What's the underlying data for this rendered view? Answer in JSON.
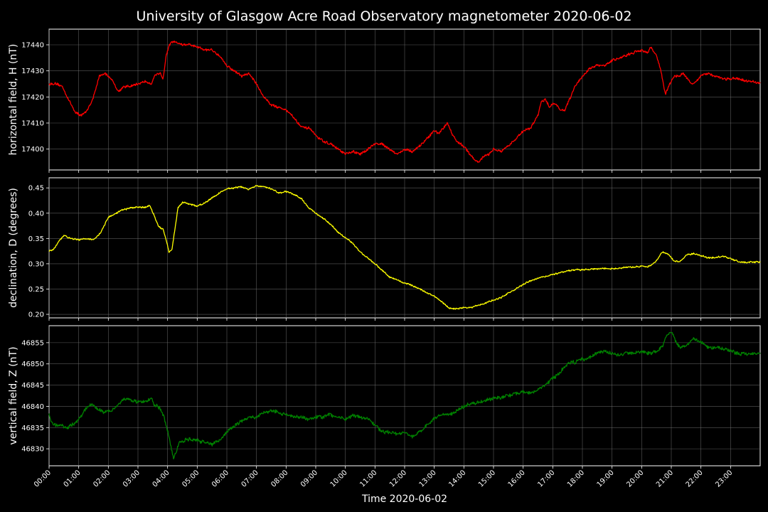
{
  "figure": {
    "title": "University of Glasgow Acre Road Observatory magnetometer 2020-06-02",
    "xlabel": "Time 2020-06-02",
    "background": "#000000"
  },
  "chart_data": [
    {
      "type": "line",
      "ylabel": "horizontal field, H (nT)",
      "color": "#ff0000",
      "ylim": [
        17392,
        17446
      ],
      "yticks": [
        17400,
        17410,
        17420,
        17430,
        17440
      ],
      "xlim": [
        0,
        24
      ],
      "xticks": [
        "00:00",
        "01:00",
        "02:00",
        "03:00",
        "04:00",
        "05:00",
        "06:00",
        "07:00",
        "08:00",
        "09:00",
        "10:00",
        "11:00",
        "12:00",
        "13:00",
        "14:00",
        "15:00",
        "16:00",
        "17:00",
        "18:00",
        "19:00",
        "20:00",
        "21:00",
        "22:00",
        "23:00"
      ],
      "grid": true,
      "noise": 0.8,
      "x": [
        0,
        0.2,
        0.45,
        0.7,
        0.9,
        1.05,
        1.25,
        1.5,
        1.7,
        1.9,
        2.1,
        2.35,
        2.5,
        2.75,
        3.0,
        3.25,
        3.45,
        3.55,
        3.75,
        3.85,
        3.95,
        4.05,
        4.15,
        4.3,
        4.5,
        4.75,
        5.0,
        5.25,
        5.5,
        5.75,
        6.0,
        6.25,
        6.5,
        6.75,
        7.0,
        7.25,
        7.5,
        7.75,
        8.0,
        8.2,
        8.4,
        8.6,
        8.8,
        9.0,
        9.25,
        9.5,
        9.75,
        10.0,
        10.25,
        10.5,
        10.75,
        11.0,
        11.25,
        11.5,
        11.75,
        12.0,
        12.25,
        12.5,
        12.75,
        13.0,
        13.15,
        13.3,
        13.45,
        13.6,
        13.75,
        14.0,
        14.15,
        14.35,
        14.5,
        14.65,
        14.85,
        15.0,
        15.25,
        15.5,
        15.75,
        16.0,
        16.25,
        16.5,
        16.6,
        16.75,
        16.9,
        17.05,
        17.25,
        17.4,
        17.6,
        17.75,
        18.0,
        18.25,
        18.5,
        18.75,
        19.0,
        19.25,
        19.5,
        19.75,
        20.0,
        20.2,
        20.3,
        20.5,
        20.65,
        20.8,
        20.95,
        21.1,
        21.25,
        21.4,
        21.55,
        21.7,
        21.85,
        22.0,
        22.25,
        22.5,
        22.75,
        23.0,
        23.25,
        23.5,
        23.75,
        24.0
      ],
      "y": [
        17425,
        17425,
        17424,
        17418,
        17414,
        17413,
        17414,
        17420,
        17428,
        17429,
        17427,
        17422,
        17424,
        17424,
        17425,
        17426,
        17425,
        17428,
        17429,
        17427,
        17436,
        17440,
        17441,
        17441,
        17440,
        17440,
        17439,
        17438,
        17438,
        17436,
        17432,
        17430,
        17428,
        17429,
        17425,
        17420,
        17417,
        17416,
        17415,
        17413,
        17410,
        17408,
        17408,
        17405,
        17403,
        17402,
        17400,
        17398,
        17399,
        17398,
        17400,
        17402,
        17402,
        17400,
        17398,
        17400,
        17399,
        17401,
        17404,
        17407,
        17406,
        17408,
        17410,
        17406,
        17403,
        17401,
        17399,
        17396,
        17395,
        17397,
        17398,
        17400,
        17399,
        17401,
        17404,
        17407,
        17408,
        17413,
        17418,
        17419,
        17416,
        17418,
        17415,
        17415,
        17420,
        17424,
        17428,
        17431,
        17432,
        17432,
        17434,
        17435,
        17436,
        17437,
        17438,
        17437,
        17439,
        17436,
        17430,
        17421,
        17425,
        17428,
        17428,
        17429,
        17427,
        17425,
        17426,
        17428,
        17429,
        17428,
        17427,
        17427,
        17427,
        17426,
        17426,
        17425
      ]
    },
    {
      "type": "line",
      "ylabel": "declination, D (degrees)",
      "color": "#ffff00",
      "ylim": [
        0.193,
        0.47
      ],
      "yticks": [
        0.2,
        0.25,
        0.3,
        0.35,
        0.4,
        0.45
      ],
      "tickfmt": 2,
      "xlim": [
        0,
        24
      ],
      "xticks": [
        "00:00",
        "01:00",
        "02:00",
        "03:00",
        "04:00",
        "05:00",
        "06:00",
        "07:00",
        "08:00",
        "09:00",
        "10:00",
        "11:00",
        "12:00",
        "13:00",
        "14:00",
        "15:00",
        "16:00",
        "17:00",
        "18:00",
        "19:00",
        "20:00",
        "21:00",
        "22:00",
        "23:00"
      ],
      "grid": true,
      "noise": 0.0025,
      "x": [
        0,
        0.15,
        0.35,
        0.5,
        0.75,
        1.0,
        1.25,
        1.5,
        1.75,
        2.0,
        2.25,
        2.5,
        2.75,
        3.0,
        3.25,
        3.4,
        3.55,
        3.7,
        3.85,
        4.0,
        4.05,
        4.15,
        4.25,
        4.35,
        4.5,
        4.75,
        5.0,
        5.25,
        5.5,
        5.75,
        6.0,
        6.25,
        6.5,
        6.75,
        7.0,
        7.25,
        7.5,
        7.75,
        8.0,
        8.25,
        8.5,
        8.75,
        9.0,
        9.25,
        9.5,
        9.75,
        10.0,
        10.25,
        10.5,
        10.75,
        11.0,
        11.25,
        11.5,
        11.75,
        12.0,
        12.25,
        12.5,
        12.75,
        13.0,
        13.25,
        13.5,
        13.75,
        14.0,
        14.25,
        14.5,
        14.75,
        15.0,
        15.25,
        15.5,
        15.75,
        16.0,
        16.25,
        16.5,
        16.75,
        17.0,
        17.25,
        17.5,
        17.75,
        18.0,
        18.25,
        18.5,
        18.75,
        19.0,
        19.25,
        19.5,
        19.75,
        20.0,
        20.2,
        20.45,
        20.7,
        20.9,
        21.1,
        21.3,
        21.5,
        21.75,
        22.0,
        22.25,
        22.5,
        22.75,
        23.0,
        23.25,
        23.5,
        23.75,
        24.0
      ],
      "y": [
        0.325,
        0.328,
        0.345,
        0.356,
        0.35,
        0.348,
        0.35,
        0.347,
        0.362,
        0.392,
        0.399,
        0.407,
        0.41,
        0.412,
        0.412,
        0.415,
        0.395,
        0.373,
        0.368,
        0.335,
        0.322,
        0.33,
        0.37,
        0.41,
        0.421,
        0.418,
        0.414,
        0.42,
        0.43,
        0.44,
        0.448,
        0.45,
        0.452,
        0.447,
        0.454,
        0.452,
        0.448,
        0.44,
        0.443,
        0.437,
        0.43,
        0.412,
        0.4,
        0.39,
        0.378,
        0.363,
        0.352,
        0.34,
        0.323,
        0.312,
        0.3,
        0.287,
        0.273,
        0.268,
        0.262,
        0.257,
        0.25,
        0.243,
        0.236,
        0.225,
        0.212,
        0.211,
        0.213,
        0.214,
        0.218,
        0.223,
        0.228,
        0.233,
        0.242,
        0.25,
        0.259,
        0.266,
        0.272,
        0.275,
        0.279,
        0.282,
        0.286,
        0.288,
        0.288,
        0.289,
        0.29,
        0.291,
        0.29,
        0.291,
        0.293,
        0.294,
        0.295,
        0.294,
        0.302,
        0.324,
        0.318,
        0.305,
        0.304,
        0.317,
        0.32,
        0.316,
        0.312,
        0.312,
        0.315,
        0.31,
        0.305,
        0.302,
        0.303,
        0.304
      ]
    },
    {
      "type": "line",
      "ylabel": "vertical field, Z (nT)",
      "color": "#008000",
      "ylim": [
        46826,
        46859
      ],
      "yticks": [
        46830,
        46835,
        46840,
        46845,
        46850,
        46855
      ],
      "xlim": [
        0,
        24
      ],
      "xticks": [
        "00:00",
        "01:00",
        "02:00",
        "03:00",
        "04:00",
        "05:00",
        "06:00",
        "07:00",
        "08:00",
        "09:00",
        "10:00",
        "11:00",
        "12:00",
        "13:00",
        "14:00",
        "15:00",
        "16:00",
        "17:00",
        "18:00",
        "19:00",
        "20:00",
        "21:00",
        "22:00",
        "23:00"
      ],
      "grid": true,
      "noise": 0.7,
      "x": [
        0,
        0.1,
        0.25,
        0.4,
        0.6,
        0.85,
        1.0,
        1.25,
        1.45,
        1.65,
        1.85,
        2.1,
        2.35,
        2.55,
        2.75,
        3.0,
        3.25,
        3.45,
        3.55,
        3.75,
        3.85,
        4.0,
        4.1,
        4.2,
        4.3,
        4.4,
        4.55,
        4.75,
        5.0,
        5.25,
        5.5,
        5.75,
        6.0,
        6.25,
        6.5,
        6.75,
        7.0,
        7.25,
        7.5,
        7.75,
        8.0,
        8.25,
        8.5,
        8.75,
        9.0,
        9.25,
        9.5,
        9.75,
        10.0,
        10.25,
        10.5,
        10.75,
        11.0,
        11.25,
        11.5,
        11.75,
        12.0,
        12.25,
        12.5,
        12.75,
        13.0,
        13.25,
        13.5,
        13.75,
        14.0,
        14.25,
        14.5,
        14.75,
        15.0,
        15.25,
        15.5,
        15.75,
        16.0,
        16.25,
        16.5,
        16.75,
        17.0,
        17.25,
        17.5,
        17.75,
        18.0,
        18.25,
        18.5,
        18.75,
        19.0,
        19.25,
        19.5,
        19.75,
        20.0,
        20.25,
        20.5,
        20.7,
        20.85,
        21.0,
        21.15,
        21.3,
        21.5,
        21.75,
        22.0,
        22.25,
        22.5,
        22.75,
        23.0,
        23.25,
        23.5,
        23.75,
        24.0
      ],
      "y": [
        46838,
        46836,
        46835.5,
        46835.5,
        46835,
        46836,
        46837,
        46839.5,
        46840.5,
        46839.5,
        46838.5,
        46839,
        46840.5,
        46842,
        46841.5,
        46841,
        46841,
        46842,
        46840.5,
        46839.5,
        46838,
        46834.5,
        46831,
        46828,
        46829.5,
        46831.5,
        46832,
        46832.3,
        46832,
        46831.5,
        46831,
        46832,
        46834,
        46835.5,
        46836.5,
        46837.5,
        46837.5,
        46838.5,
        46839,
        46838.5,
        46838,
        46837.5,
        46837.5,
        46837,
        46837.5,
        46837.5,
        46838,
        46837.5,
        46837,
        46838,
        46837.5,
        46837,
        46835.5,
        46834,
        46834,
        46833.5,
        46834,
        46833,
        46834,
        46835.5,
        46837,
        46838,
        46838,
        46839,
        46840,
        46840.5,
        46841,
        46841.5,
        46842,
        46842,
        46842.5,
        46843,
        46843.5,
        46843,
        46844,
        46845,
        46846.5,
        46848,
        46850,
        46850.5,
        46851,
        46851.5,
        46852.5,
        46853,
        46852.5,
        46852,
        46852.5,
        46852.5,
        46853,
        46852.5,
        46853,
        46854,
        46857,
        46857.5,
        46855.5,
        46853.5,
        46854.5,
        46856,
        46855,
        46854,
        46854,
        46853.5,
        46853,
        46852.5,
        46852.5,
        46852.5,
        46852.5
      ]
    }
  ]
}
